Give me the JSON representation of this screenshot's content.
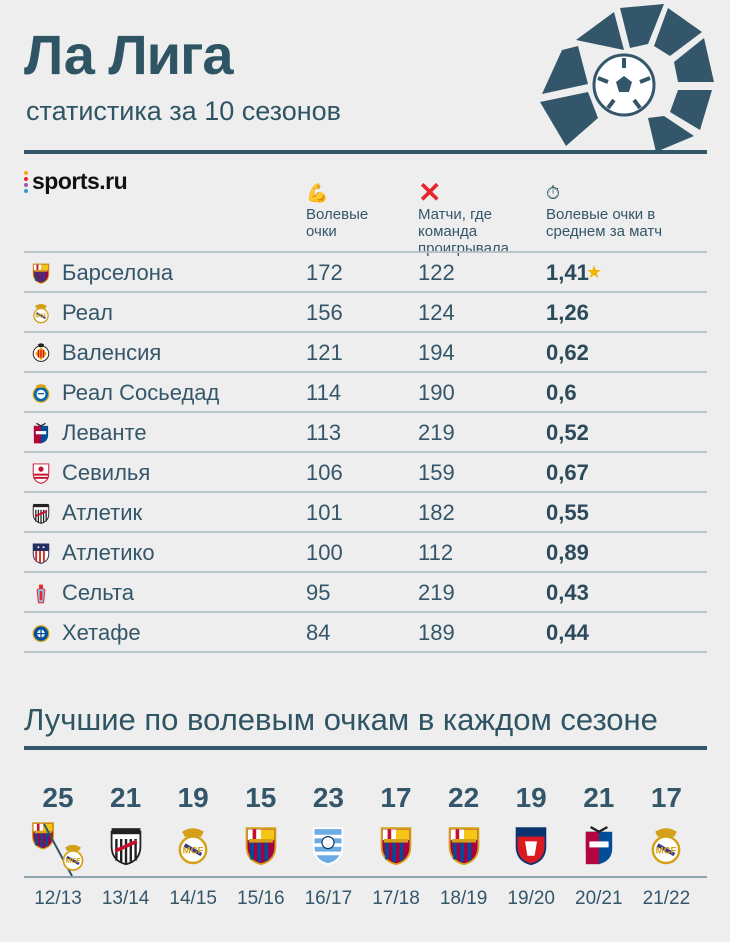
{
  "header": {
    "title": "Ла Лига",
    "subtitle": "статистика за 10 сезонов",
    "brand": "sports.ru"
  },
  "columns": {
    "points": "Волевые очки",
    "lost": "Матчи, где команда проигрывала",
    "avg": "Волевые очки в среднем за матч"
  },
  "teams": [
    {
      "name": "Барселона",
      "points": "172",
      "lost": "122",
      "avg": "1,41",
      "crest": "barcelona-crest",
      "star": true
    },
    {
      "name": "Реал",
      "points": "156",
      "lost": "124",
      "avg": "1,26",
      "crest": "real-madrid-crest"
    },
    {
      "name": "Валенсия",
      "points": "121",
      "lost": "194",
      "avg": "0,62",
      "crest": "valencia-crest"
    },
    {
      "name": "Реал Сосьедад",
      "points": "114",
      "lost": "190",
      "avg": "0,6",
      "crest": "real-sociedad-crest"
    },
    {
      "name": "Леванте",
      "points": "113",
      "lost": "219",
      "avg": "0,52",
      "crest": "levante-crest"
    },
    {
      "name": "Севилья",
      "points": "106",
      "lost": "159",
      "avg": "0,67",
      "crest": "sevilla-crest"
    },
    {
      "name": "Атлетик",
      "points": "101",
      "lost": "182",
      "avg": "0,55",
      "crest": "athletic-crest"
    },
    {
      "name": "Атлетико",
      "points": "100",
      "lost": "112",
      "avg": "0,89",
      "crest": "atletico-crest"
    },
    {
      "name": "Сельта",
      "points": "95",
      "lost": "219",
      "avg": "0,43",
      "crest": "celta-crest"
    },
    {
      "name": "Хетафе",
      "points": "84",
      "lost": "189",
      "avg": "0,44",
      "crest": "getafe-crest"
    }
  ],
  "seasons_title": "Лучшие по волевым очкам в каждом сезоне",
  "seasons": [
    {
      "value": "25",
      "label": "12/13",
      "crest": "barcelona-real-split"
    },
    {
      "value": "21",
      "label": "13/14",
      "crest": "athletic-crest"
    },
    {
      "value": "19",
      "label": "14/15",
      "crest": "real-madrid-crest"
    },
    {
      "value": "15",
      "label": "15/16",
      "crest": "barcelona-crest"
    },
    {
      "value": "23",
      "label": "16/17",
      "crest": "malaga-crest"
    },
    {
      "value": "17",
      "label": "17/18",
      "crest": "barcelona-crest"
    },
    {
      "value": "22",
      "label": "18/19",
      "crest": "barcelona-crest"
    },
    {
      "value": "19",
      "label": "19/20",
      "crest": "osasuna-crest"
    },
    {
      "value": "21",
      "label": "20/21",
      "crest": "levante-crest"
    },
    {
      "value": "17",
      "label": "21/22",
      "crest": "real-madrid-crest"
    }
  ],
  "colors": {
    "primary": "#2f5564",
    "accent_red": "#e8262b",
    "background": "#eeeeee"
  }
}
